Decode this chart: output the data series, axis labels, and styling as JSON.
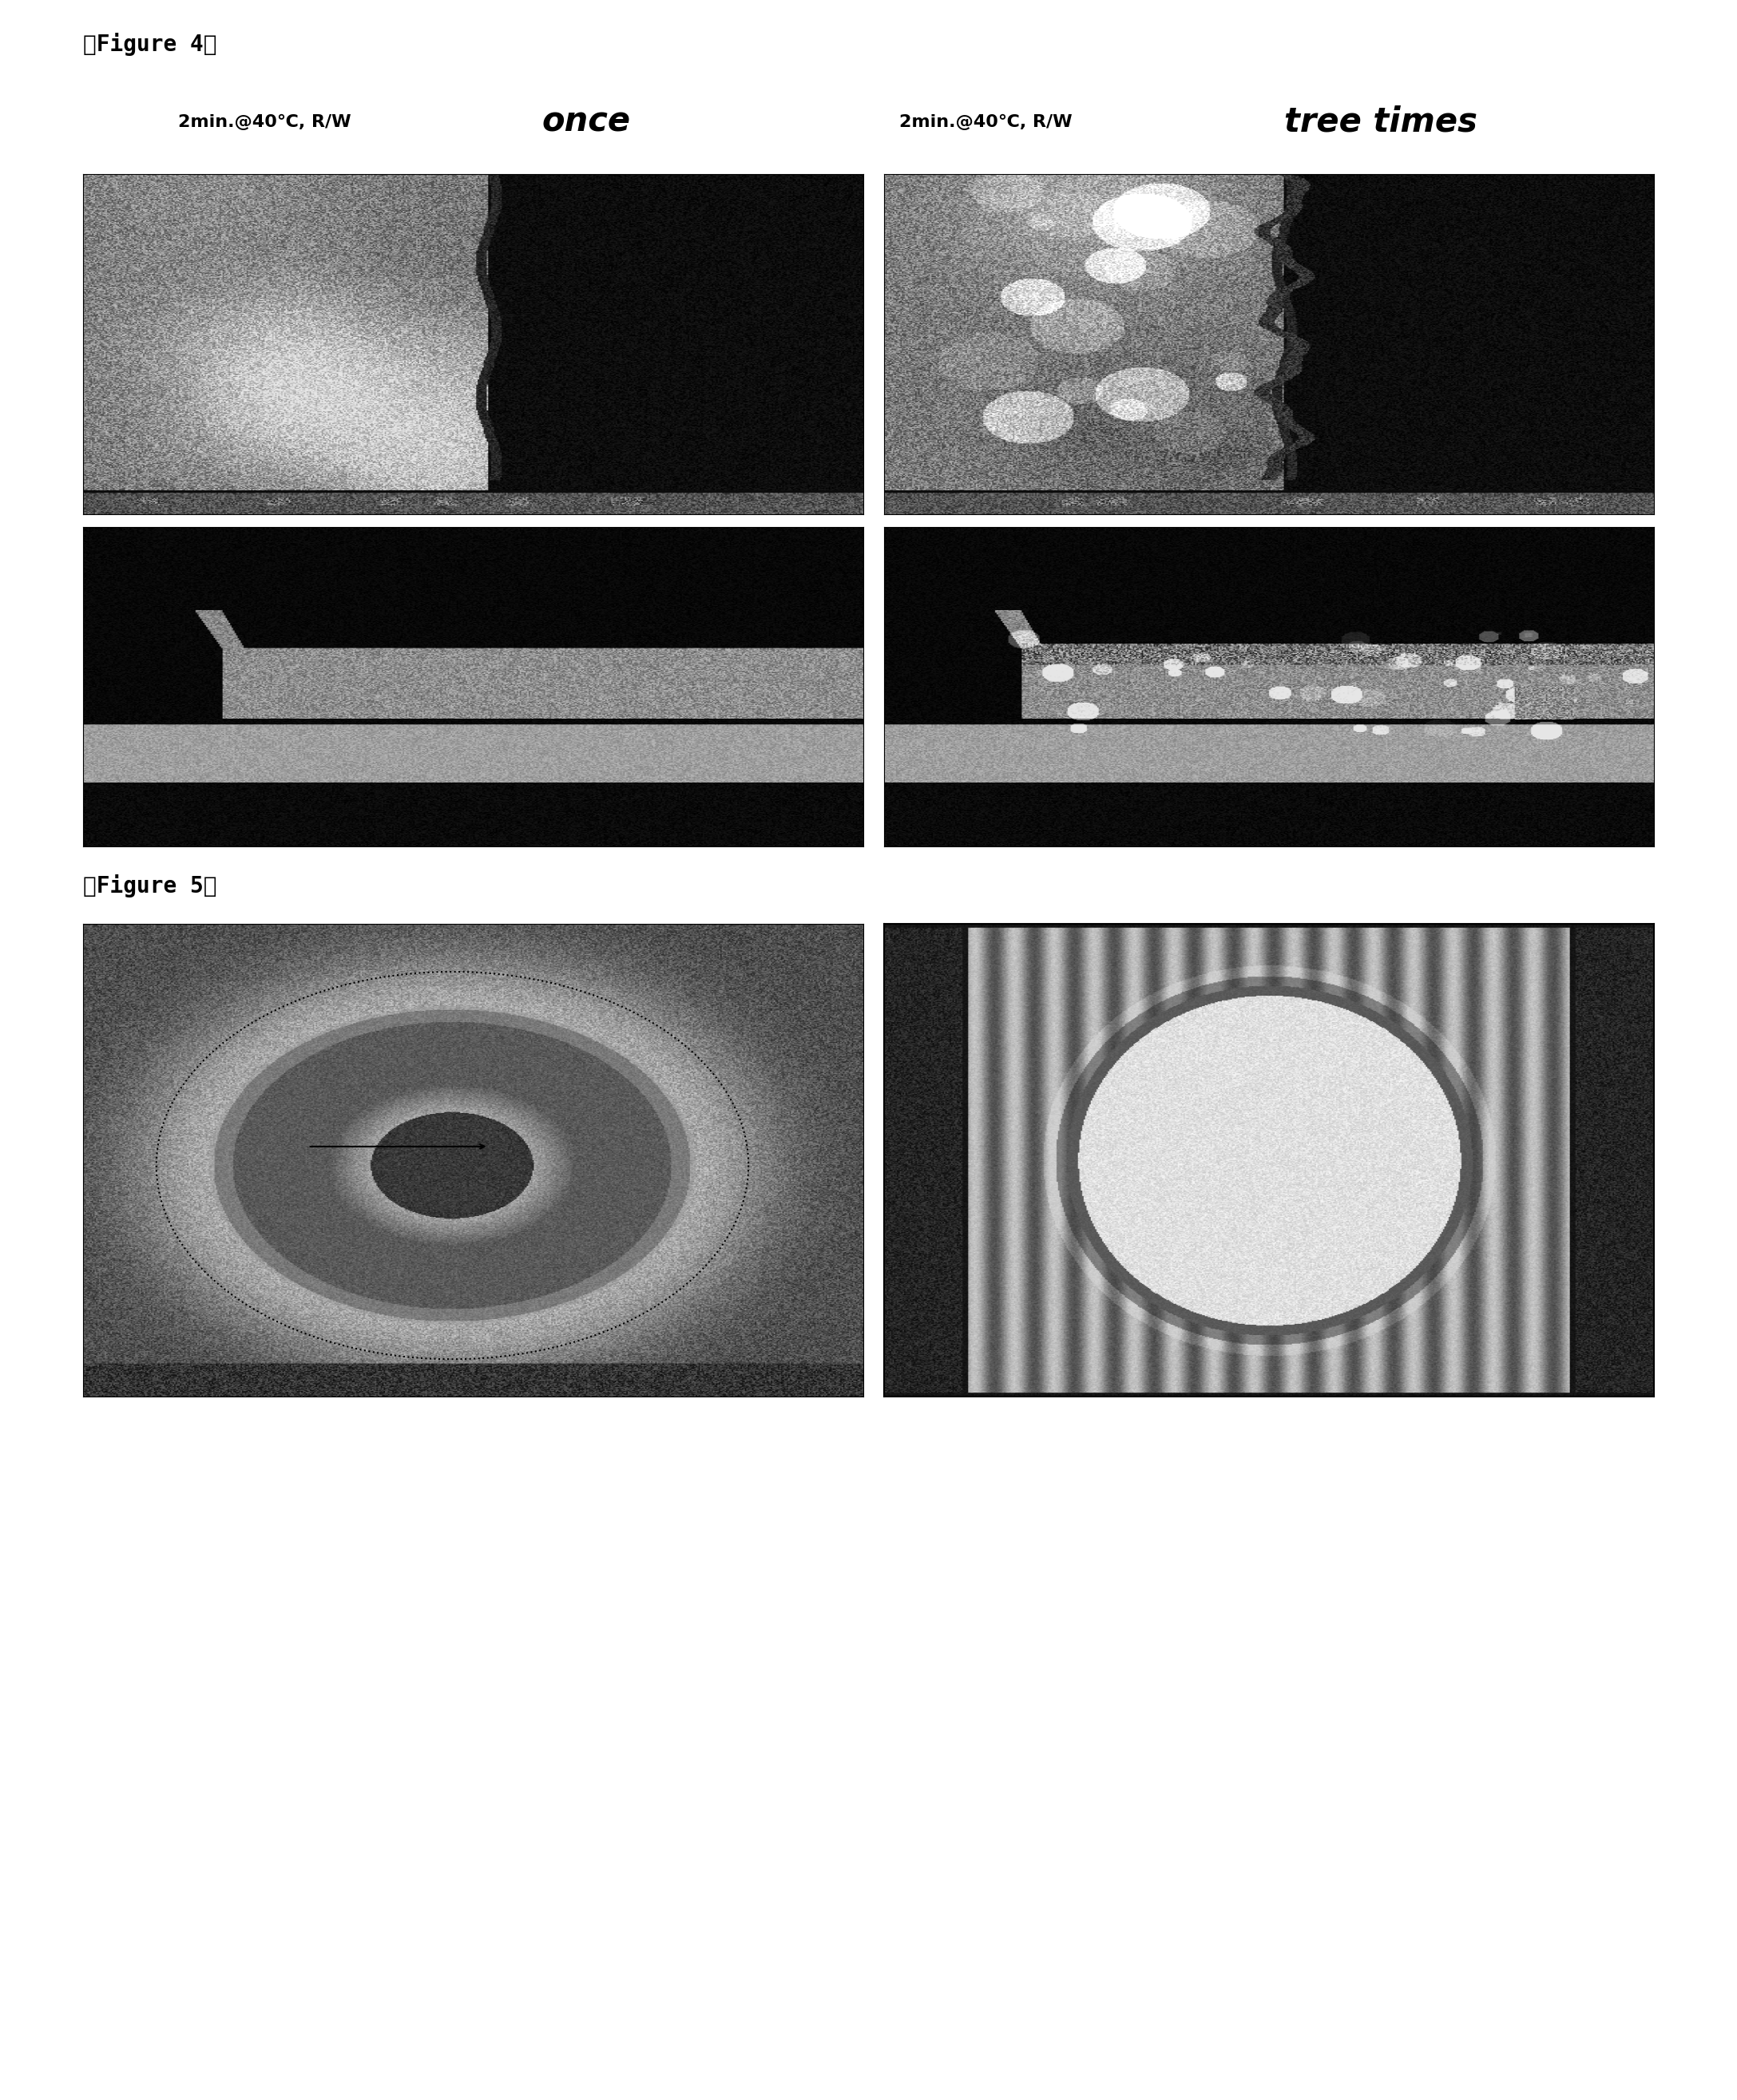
{
  "fig4_label": "【Figure 4】",
  "fig5_label": "【Figure 5】",
  "top_left_label": "2min.@40℃, R/W",
  "top_left_sublabel": "once",
  "top_right_label": "2min.@40℃, R/W",
  "top_right_sublabel": "tree times",
  "background_color": "#ffffff",
  "fig_width": 21.75,
  "fig_height": 26.3,
  "noise_seed": 42
}
